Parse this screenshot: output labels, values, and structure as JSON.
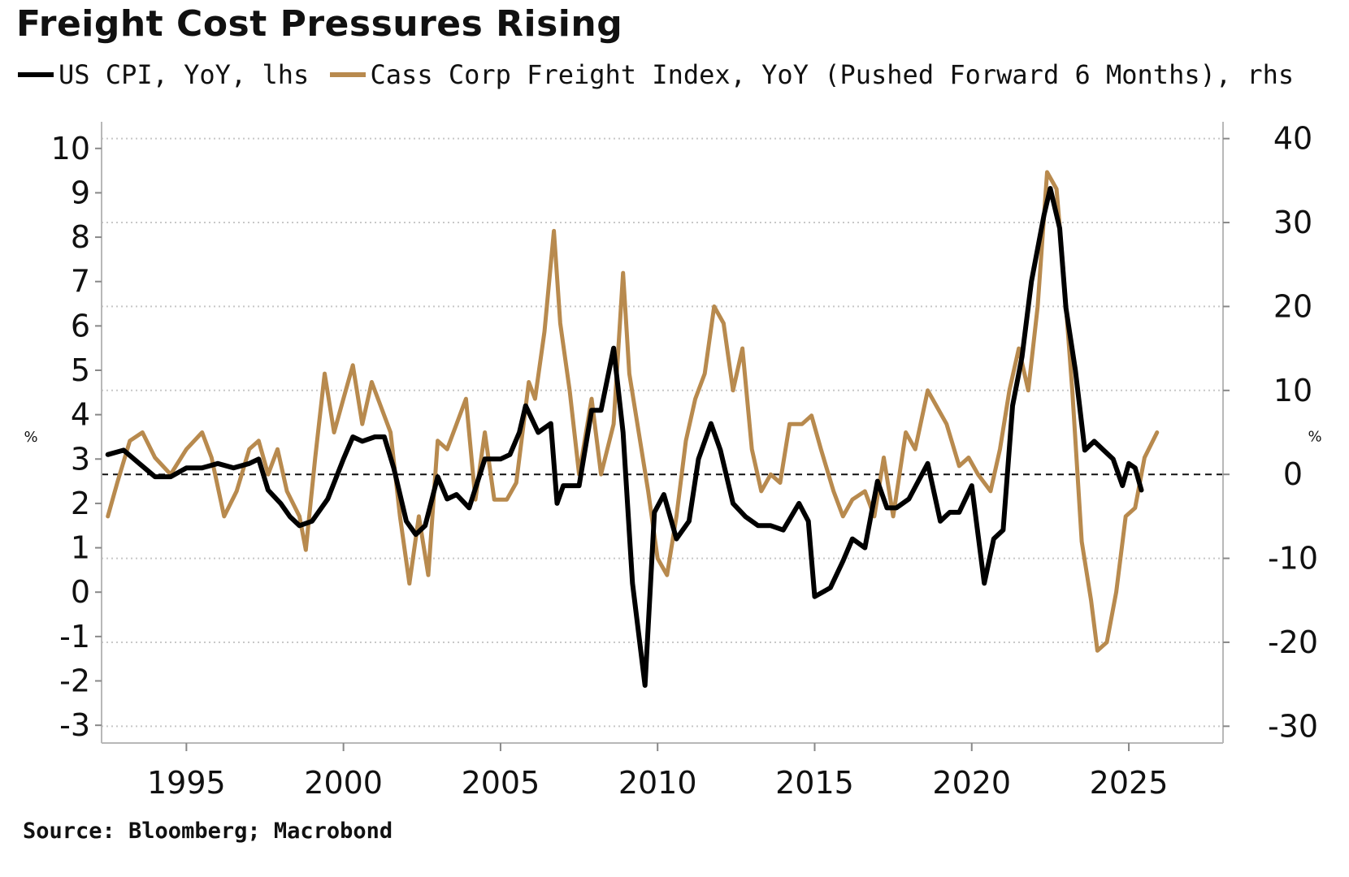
{
  "title": "Freight Cost Pressures Rising",
  "source": "Source: Bloomberg; Macrobond",
  "legend": [
    {
      "label": "US CPI, YoY, lhs",
      "color": "#000000"
    },
    {
      "label": "Cass Corp Freight Index, YoY (Pushed Forward 6 Months), rhs",
      "color": "#b88a4e"
    }
  ],
  "chart_data": {
    "type": "line",
    "title": "Freight Cost Pressures Rising",
    "xlabel": "",
    "ylabel_left": "%",
    "ylabel_right": "%",
    "x_ticks": [
      "1995",
      "2000",
      "2005",
      "2010",
      "2015",
      "2020",
      "2025"
    ],
    "y_left_ticks": [
      "10",
      "9",
      "8",
      "7",
      "6",
      "5",
      "4",
      "3",
      "2",
      "1",
      "0",
      "-1",
      "-2",
      "-3"
    ],
    "y_right_ticks": [
      "40",
      "30",
      "20",
      "10",
      "0",
      "-10",
      "-20",
      "-30"
    ],
    "x_range": [
      1992.3,
      2028.0
    ],
    "y_left_range": [
      -3.4,
      10.6
    ],
    "y_right_range": [
      -32,
      42
    ],
    "grid": "horizontal dotted",
    "reference_line": {
      "axis": "right",
      "value": 0,
      "style": "dashed"
    },
    "legend_position": "top",
    "series": [
      {
        "name": "US CPI, YoY, lhs",
        "axis": "left",
        "color": "#000000",
        "points": [
          [
            1992.5,
            3.1
          ],
          [
            1993.0,
            3.2
          ],
          [
            1993.5,
            2.9
          ],
          [
            1994.0,
            2.6
          ],
          [
            1994.5,
            2.6
          ],
          [
            1995.0,
            2.8
          ],
          [
            1995.5,
            2.8
          ],
          [
            1996.0,
            2.9
          ],
          [
            1996.5,
            2.8
          ],
          [
            1997.0,
            2.9
          ],
          [
            1997.3,
            3.0
          ],
          [
            1997.6,
            2.3
          ],
          [
            1998.0,
            2.0
          ],
          [
            1998.3,
            1.7
          ],
          [
            1998.6,
            1.5
          ],
          [
            1999.0,
            1.6
          ],
          [
            1999.5,
            2.1
          ],
          [
            2000.0,
            3.0
          ],
          [
            2000.3,
            3.5
          ],
          [
            2000.6,
            3.4
          ],
          [
            2001.0,
            3.5
          ],
          [
            2001.3,
            3.5
          ],
          [
            2001.6,
            2.8
          ],
          [
            2002.0,
            1.6
          ],
          [
            2002.3,
            1.3
          ],
          [
            2002.6,
            1.5
          ],
          [
            2003.0,
            2.6
          ],
          [
            2003.3,
            2.1
          ],
          [
            2003.6,
            2.2
          ],
          [
            2004.0,
            1.9
          ],
          [
            2004.5,
            3.0
          ],
          [
            2005.0,
            3.0
          ],
          [
            2005.3,
            3.1
          ],
          [
            2005.6,
            3.6
          ],
          [
            2005.8,
            4.2
          ],
          [
            2006.2,
            3.6
          ],
          [
            2006.6,
            3.8
          ],
          [
            2006.8,
            2.0
          ],
          [
            2007.0,
            2.4
          ],
          [
            2007.5,
            2.4
          ],
          [
            2007.9,
            4.1
          ],
          [
            2008.2,
            4.1
          ],
          [
            2008.6,
            5.5
          ],
          [
            2008.9,
            3.6
          ],
          [
            2009.2,
            0.2
          ],
          [
            2009.6,
            -2.1
          ],
          [
            2009.9,
            1.8
          ],
          [
            2010.2,
            2.2
          ],
          [
            2010.6,
            1.2
          ],
          [
            2011.0,
            1.6
          ],
          [
            2011.3,
            3.0
          ],
          [
            2011.7,
            3.8
          ],
          [
            2012.0,
            3.2
          ],
          [
            2012.4,
            2.0
          ],
          [
            2012.8,
            1.7
          ],
          [
            2013.2,
            1.5
          ],
          [
            2013.6,
            1.5
          ],
          [
            2014.0,
            1.4
          ],
          [
            2014.5,
            2.0
          ],
          [
            2014.8,
            1.6
          ],
          [
            2015.0,
            -0.1
          ],
          [
            2015.5,
            0.1
          ],
          [
            2015.9,
            0.7
          ],
          [
            2016.2,
            1.2
          ],
          [
            2016.6,
            1.0
          ],
          [
            2017.0,
            2.5
          ],
          [
            2017.3,
            1.9
          ],
          [
            2017.6,
            1.9
          ],
          [
            2018.0,
            2.1
          ],
          [
            2018.3,
            2.5
          ],
          [
            2018.6,
            2.9
          ],
          [
            2019.0,
            1.6
          ],
          [
            2019.3,
            1.8
          ],
          [
            2019.6,
            1.8
          ],
          [
            2020.0,
            2.4
          ],
          [
            2020.4,
            0.2
          ],
          [
            2020.7,
            1.2
          ],
          [
            2021.0,
            1.4
          ],
          [
            2021.3,
            4.2
          ],
          [
            2021.6,
            5.3
          ],
          [
            2021.9,
            7.0
          ],
          [
            2022.3,
            8.5
          ],
          [
            2022.5,
            9.1
          ],
          [
            2022.8,
            8.2
          ],
          [
            2023.0,
            6.4
          ],
          [
            2023.3,
            5.0
          ],
          [
            2023.6,
            3.2
          ],
          [
            2023.9,
            3.4
          ],
          [
            2024.2,
            3.2
          ],
          [
            2024.5,
            3.0
          ],
          [
            2024.8,
            2.4
          ],
          [
            2025.0,
            2.9
          ],
          [
            2025.2,
            2.8
          ],
          [
            2025.4,
            2.3
          ]
        ]
      },
      {
        "name": "Cass Corp Freight Index, YoY (Pushed Forward 6 Months), rhs",
        "axis": "right",
        "color": "#b88a4e",
        "points": [
          [
            1992.5,
            -5
          ],
          [
            1992.8,
            -1
          ],
          [
            1993.2,
            4
          ],
          [
            1993.6,
            5
          ],
          [
            1994.0,
            2
          ],
          [
            1994.5,
            0
          ],
          [
            1995.0,
            3
          ],
          [
            1995.5,
            5
          ],
          [
            1995.8,
            2
          ],
          [
            1996.2,
            -5
          ],
          [
            1996.6,
            -2
          ],
          [
            1997.0,
            3
          ],
          [
            1997.3,
            4
          ],
          [
            1997.6,
            0
          ],
          [
            1997.9,
            3
          ],
          [
            1998.2,
            -2
          ],
          [
            1998.6,
            -5
          ],
          [
            1998.8,
            -9
          ],
          [
            1999.1,
            2
          ],
          [
            1999.4,
            12
          ],
          [
            1999.7,
            5
          ],
          [
            2000.0,
            9
          ],
          [
            2000.3,
            13
          ],
          [
            2000.6,
            6
          ],
          [
            2000.9,
            11
          ],
          [
            2001.2,
            8
          ],
          [
            2001.5,
            5
          ],
          [
            2001.8,
            -5
          ],
          [
            2002.1,
            -13
          ],
          [
            2002.4,
            -5
          ],
          [
            2002.7,
            -12
          ],
          [
            2003.0,
            4
          ],
          [
            2003.3,
            3
          ],
          [
            2003.6,
            6
          ],
          [
            2003.9,
            9
          ],
          [
            2004.2,
            -3
          ],
          [
            2004.5,
            5
          ],
          [
            2004.8,
            -3
          ],
          [
            2005.2,
            -3
          ],
          [
            2005.5,
            -1
          ],
          [
            2005.9,
            11
          ],
          [
            2006.1,
            9
          ],
          [
            2006.4,
            17
          ],
          [
            2006.7,
            29
          ],
          [
            2006.9,
            18
          ],
          [
            2007.2,
            10
          ],
          [
            2007.5,
            0
          ],
          [
            2007.9,
            9
          ],
          [
            2008.2,
            0
          ],
          [
            2008.6,
            6
          ],
          [
            2008.9,
            24
          ],
          [
            2009.1,
            12
          ],
          [
            2009.4,
            5
          ],
          [
            2009.7,
            -2
          ],
          [
            2010.0,
            -10
          ],
          [
            2010.3,
            -12
          ],
          [
            2010.6,
            -5
          ],
          [
            2010.9,
            4
          ],
          [
            2011.2,
            9
          ],
          [
            2011.5,
            12
          ],
          [
            2011.8,
            20
          ],
          [
            2012.1,
            18
          ],
          [
            2012.4,
            10
          ],
          [
            2012.7,
            15
          ],
          [
            2013.0,
            3
          ],
          [
            2013.3,
            -2
          ],
          [
            2013.6,
            0
          ],
          [
            2013.9,
            -1
          ],
          [
            2014.2,
            6
          ],
          [
            2014.6,
            6
          ],
          [
            2014.9,
            7
          ],
          [
            2015.2,
            3
          ],
          [
            2015.6,
            -2
          ],
          [
            2015.9,
            -5
          ],
          [
            2016.2,
            -3
          ],
          [
            2016.6,
            -2
          ],
          [
            2016.9,
            -5
          ],
          [
            2017.2,
            2
          ],
          [
            2017.5,
            -5
          ],
          [
            2017.9,
            5
          ],
          [
            2018.2,
            3
          ],
          [
            2018.6,
            10
          ],
          [
            2018.9,
            8
          ],
          [
            2019.2,
            6
          ],
          [
            2019.6,
            1
          ],
          [
            2019.9,
            2
          ],
          [
            2020.2,
            0
          ],
          [
            2020.6,
            -2
          ],
          [
            2020.9,
            3
          ],
          [
            2021.2,
            10
          ],
          [
            2021.5,
            15
          ],
          [
            2021.8,
            10
          ],
          [
            2022.1,
            20
          ],
          [
            2022.4,
            36
          ],
          [
            2022.7,
            34
          ],
          [
            2022.9,
            25
          ],
          [
            2023.2,
            10
          ],
          [
            2023.5,
            -8
          ],
          [
            2023.8,
            -15
          ],
          [
            2024.0,
            -21
          ],
          [
            2024.3,
            -20
          ],
          [
            2024.6,
            -14
          ],
          [
            2024.9,
            -5
          ],
          [
            2025.2,
            -4
          ],
          [
            2025.5,
            2
          ],
          [
            2025.9,
            5
          ]
        ]
      }
    ]
  }
}
